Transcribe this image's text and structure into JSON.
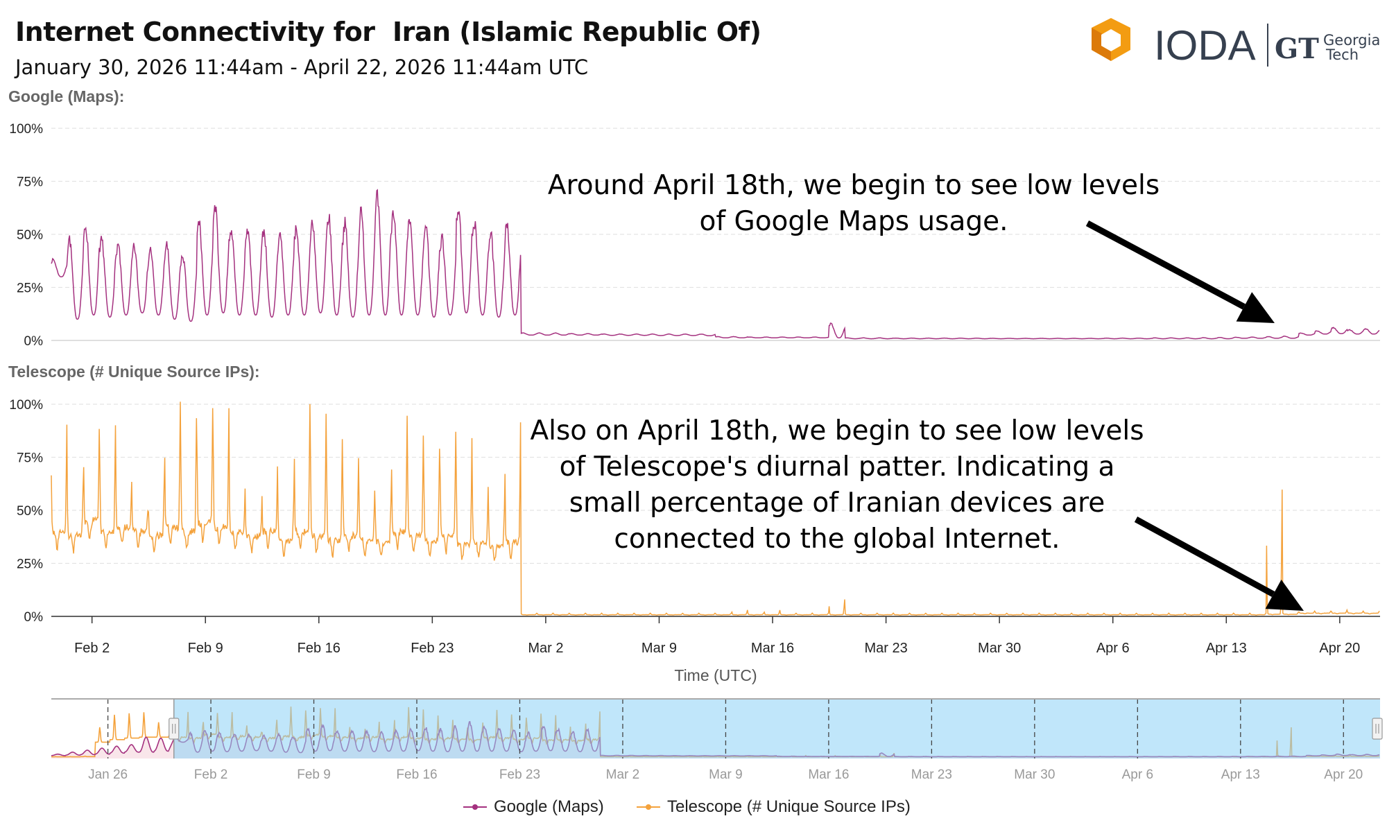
{
  "header": {
    "title": "Internet Connectivity for  Iran (Islamic Republic Of)",
    "subtitle": "January 30, 2026 11:44am - April 22, 2026 11:44am UTC"
  },
  "logo": {
    "ioda_text": "IODA",
    "gt_text": "GT",
    "georgia": "Georgia",
    "tech": "Tech"
  },
  "colors": {
    "google": "#a4317f",
    "telescope": "#f4a23c",
    "navigator_fill": "#bfe6f7"
  },
  "annotations": [
    {
      "lines": [
        "Around April 18th, we begin to see low levels",
        "of Google Maps usage."
      ]
    },
    {
      "lines": [
        "Also on April 18th, we begin to see low levels",
        "of Telescope's diurnal patter. Indicating a",
        "small percentage of Iranian devices are",
        "connected to the global Internet."
      ]
    }
  ],
  "legend": [
    "Google (Maps)",
    "Telescope (# Unique Source IPs)"
  ],
  "chart_data": [
    {
      "type": "line",
      "title": "Google (Maps):",
      "ylabel": "",
      "xlabel": "Time (UTC)",
      "ylim": [
        0,
        100
      ],
      "yticks": [
        "100%",
        "75%",
        "50%",
        "25%",
        "0%"
      ],
      "grid": true,
      "x_start": "2026-01-30T11:44Z",
      "x_end": "2026-04-22T11:44Z",
      "xticks": [
        "Feb 2",
        "Feb 9",
        "Feb 16",
        "Feb 23",
        "Mar 2",
        "Mar 9",
        "Mar 16",
        "Mar 23",
        "Mar 30",
        "Apr 6",
        "Apr 13",
        "Apr 20"
      ],
      "series_name": "Google (Maps)",
      "daily_peak": [
        38,
        48,
        54,
        47,
        45,
        44,
        43,
        45,
        40,
        56,
        62,
        52,
        53,
        52,
        50,
        53,
        56,
        58,
        55,
        60,
        67,
        62,
        56,
        54,
        48,
        63,
        55,
        50,
        54,
        3.5,
        3.5,
        3.5,
        3.2,
        3.2,
        3,
        3,
        3,
        3,
        3,
        3,
        3,
        1.8,
        1.8,
        1.6,
        1.6,
        1.6,
        1.6,
        1.6,
        8,
        1.2,
        1.2,
        1.2,
        1.1,
        1.1,
        1.1,
        1.1,
        1.1,
        1.1,
        1,
        1,
        1,
        1,
        1,
        1,
        1,
        1.1,
        1.1,
        1.1,
        1.2,
        1.2,
        1.2,
        1.3,
        1.4,
        1.5,
        1.6,
        1.8,
        2,
        3.5,
        4.5,
        6,
        5,
        5.5
      ],
      "daily_trough": [
        30,
        10,
        12,
        11,
        12,
        13,
        12,
        10,
        9,
        12,
        13,
        12,
        12,
        11,
        12,
        12,
        13,
        12,
        11,
        12,
        12,
        12,
        12,
        11,
        12,
        13,
        12,
        11,
        12,
        2.5,
        2.5,
        2.5,
        2.5,
        2.5,
        2.4,
        2.4,
        2.4,
        2.3,
        2.3,
        2.3,
        2.2,
        1.2,
        1.2,
        1.2,
        1.2,
        1.2,
        1.2,
        1.2,
        1.2,
        0.8,
        0.8,
        0.8,
        0.8,
        0.8,
        0.8,
        0.8,
        0.8,
        0.8,
        0.8,
        0.8,
        0.8,
        0.8,
        0.8,
        0.8,
        0.8,
        0.8,
        0.8,
        0.8,
        0.8,
        0.8,
        0.8,
        0.8,
        0.8,
        1,
        1,
        1,
        1,
        2.5,
        3,
        3.2,
        3,
        3
      ]
    },
    {
      "type": "line",
      "title": "Telescope (# Unique Source IPs):",
      "ylim": [
        0,
        100
      ],
      "yticks": [
        "100%",
        "75%",
        "50%",
        "25%",
        "0%"
      ],
      "grid": true,
      "series_name": "Telescope (# Unique Source IPs)",
      "daily_peak": [
        90,
        60,
        88,
        90,
        65,
        50,
        60,
        100,
        95,
        100,
        98,
        60,
        45,
        70,
        55,
        100,
        95,
        85,
        75,
        60,
        55,
        95,
        85,
        80,
        88,
        85,
        60,
        50,
        92,
        1.5,
        1.5,
        1.5,
        1.5,
        1.5,
        1.5,
        1.5,
        1.5,
        1.5,
        1.5,
        1.5,
        1.5,
        1.5,
        3,
        1.5,
        3,
        1.5,
        1.5,
        1.5,
        8,
        1.5,
        1.5,
        1.5,
        1.5,
        1.5,
        1.5,
        1.5,
        1.5,
        1.5,
        1.5,
        1.5,
        1.5,
        1.5,
        1.5,
        1.5,
        1.5,
        1.5,
        1.5,
        1.5,
        1.5,
        1.5,
        1.5,
        1.5,
        1.5,
        1.5,
        1.5,
        60,
        2,
        2.5,
        2.5,
        3,
        2.5,
        2.5
      ],
      "daily_base": [
        40,
        38,
        45,
        40,
        42,
        40,
        38,
        42,
        40,
        44,
        42,
        40,
        38,
        40,
        36,
        40,
        38,
        36,
        38,
        36,
        35,
        40,
        38,
        36,
        38,
        34,
        35,
        33,
        35,
        0.8,
        0.8,
        0.8,
        0.8,
        0.8,
        0.8,
        0.8,
        0.8,
        0.8,
        0.8,
        0.8,
        0.8,
        0.8,
        0.8,
        0.8,
        0.8,
        0.8,
        0.8,
        0.8,
        0.8,
        0.8,
        0.8,
        0.8,
        0.8,
        0.8,
        0.8,
        0.8,
        0.8,
        0.8,
        0.8,
        0.8,
        0.8,
        0.8,
        0.8,
        0.8,
        0.8,
        0.8,
        0.8,
        0.8,
        0.8,
        0.8,
        0.8,
        0.8,
        0.8,
        0.8,
        0.8,
        1,
        1,
        1.5,
        1.5,
        1.5,
        1.5,
        1.5
      ]
    },
    {
      "type": "line",
      "title": "navigator",
      "x_start": "2026-01-22T03:44Z",
      "xticks": [
        "Jan 26",
        "Feb 2",
        "Feb 9",
        "Feb 16",
        "Feb 23",
        "Mar 2",
        "Mar 9",
        "Mar 16",
        "Mar 23",
        "Mar 30",
        "Apr 6",
        "Apr 13",
        "Apr 20"
      ],
      "selection": [
        "2026-01-30T11:44Z",
        "2026-04-22T11:44Z"
      ],
      "pre_google_peak": [
        6,
        10,
        14,
        18,
        22,
        25,
        40,
        38
      ],
      "pre_google_trough": [
        3,
        4,
        5,
        6,
        8,
        10,
        10,
        12
      ],
      "pre_tele_peak": [
        1,
        1,
        2,
        60,
        85,
        88,
        90,
        70
      ],
      "pre_tele_base": [
        0.5,
        0.5,
        1,
        30,
        35,
        38,
        40,
        40
      ]
    }
  ]
}
